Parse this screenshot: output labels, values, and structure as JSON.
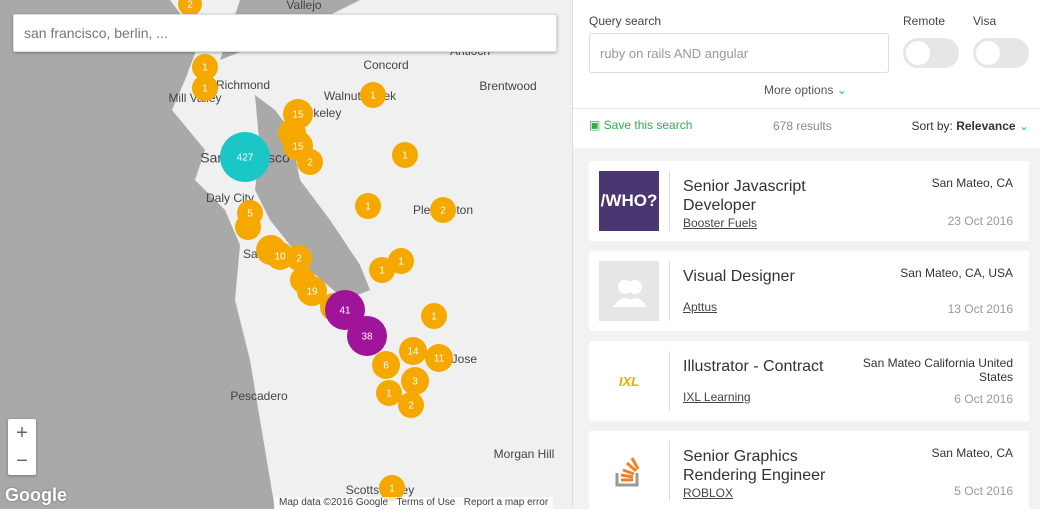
{
  "map": {
    "search_placeholder": "san francisco, berlin, ...",
    "places": [
      "Vallejo",
      "Concord",
      "Richmond",
      "Mill Valley",
      "Walnut Creek",
      "Brentwood",
      "Antioch",
      "Berkeley",
      "San Francisco",
      "Daly City",
      "Pleasanton",
      "San Mateo",
      "Pescadero",
      "San Jose",
      "Morgan Hill",
      "Scotts Valley"
    ],
    "clusters": [
      2,
      1,
      1,
      1,
      15,
      15,
      2,
      427,
      1,
      1,
      2,
      5,
      10,
      2,
      1,
      1,
      19,
      41,
      38,
      1,
      14,
      11,
      6,
      3,
      1,
      2,
      1
    ],
    "zoom_in": "+",
    "zoom_out": "−",
    "logo": "Google",
    "attribution": "Map data ©2016 Google",
    "terms": "Terms of Use",
    "report": "Report a map error"
  },
  "search": {
    "query_label": "Query search",
    "query_placeholder": "ruby on rails AND angular",
    "remote_label": "Remote",
    "visa_label": "Visa",
    "more_options": "More options",
    "save": "Save this search",
    "results": "678 results",
    "sort_label": "Sort by:",
    "sort_value": "Relevance"
  },
  "jobs": [
    {
      "logo": "/WHO?",
      "title": "Senior Javascript Developer",
      "company": "Booster Fuels",
      "location": "San Mateo, CA",
      "date": "23 Oct 2016"
    },
    {
      "title": "Visual Designer",
      "company": "Apttus",
      "location": "San Mateo, CA, USA",
      "date": "13 Oct 2016"
    },
    {
      "logo": "IXL",
      "title": "Illustrator - Contract",
      "company": "IXL Learning",
      "location": "San Mateo California United States",
      "date": "6 Oct 2016"
    },
    {
      "title": "Senior Graphics Rendering Engineer",
      "company": "ROBLOX",
      "location": "San Mateo, CA",
      "date": "5 Oct 2016"
    }
  ]
}
